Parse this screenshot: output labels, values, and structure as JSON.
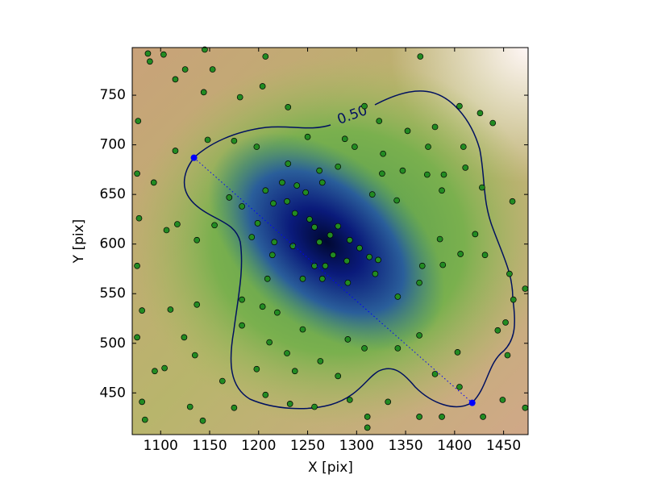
{
  "chart_data": {
    "type": "scatter",
    "x_label": "X [pix]",
    "y_label": "Y [pix]",
    "xlim": [
      1071,
      1475
    ],
    "ylim": [
      408,
      798
    ],
    "xticks": [
      1100,
      1150,
      1200,
      1250,
      1300,
      1350,
      1400,
      1450
    ],
    "yticks": [
      450,
      500,
      550,
      600,
      650,
      700,
      750
    ],
    "contour_label": "0.50",
    "series": [
      {
        "color": "#228b22",
        "x": [
          1087,
          1103,
          1145,
          1207,
          1365,
          1089,
          1125,
          1153,
          1115,
          1144,
          1181,
          1204,
          1230,
          1308,
          1323,
          1405,
          1426,
          1439,
          1380,
          1352,
          1077,
          1115,
          1148,
          1175,
          1198,
          1250,
          1288,
          1298,
          1327,
          1373,
          1409,
          1411,
          1372,
          1347,
          1326,
          1281,
          1262,
          1230,
          1239,
          1224,
          1207,
          1248,
          1265,
          1316,
          1341,
          1389,
          1387,
          1428,
          1459,
          1076,
          1093,
          1078,
          1106,
          1117,
          1137,
          1155,
          1170,
          1183,
          1199,
          1215,
          1229,
          1237,
          1252,
          1257,
          1262,
          1273,
          1281,
          1293,
          1303,
          1313,
          1322,
          1290,
          1276,
          1268,
          1257,
          1235,
          1216,
          1193,
          1214,
          1209,
          1245,
          1265,
          1291,
          1319,
          1342,
          1364,
          1367,
          1388,
          1406,
          1431,
          1385,
          1421,
          1456,
          1472,
          1460,
          1452,
          1076,
          1081,
          1110,
          1137,
          1183,
          1183,
          1204,
          1219,
          1245,
          1229,
          1211,
          1198,
          1237,
          1263,
          1281,
          1291,
          1308,
          1342,
          1364,
          1380,
          1405,
          1403,
          1444,
          1454,
          1076,
          1094,
          1104,
          1124,
          1135,
          1163,
          1175,
          1207,
          1232,
          1257,
          1293,
          1311,
          1332,
          1364,
          1387,
          1429,
          1449,
          1472,
          1081,
          1084,
          1130,
          1311,
          1143
        ],
        "y": [
          792,
          791,
          796,
          789,
          789,
          784,
          776,
          776,
          766,
          753,
          748,
          759,
          738,
          739,
          724,
          739,
          732,
          722,
          718,
          714,
          724,
          694,
          705,
          704,
          698,
          708,
          706,
          698,
          691,
          698,
          698,
          677,
          670,
          674,
          671,
          678,
          674,
          681,
          659,
          662,
          654,
          652,
          662,
          650,
          644,
          670,
          654,
          657,
          643,
          671,
          662,
          626,
          614,
          620,
          604,
          619,
          647,
          638,
          621,
          641,
          643,
          631,
          625,
          617,
          602,
          609,
          618,
          604,
          596,
          587,
          584,
          583,
          589,
          578,
          578,
          598,
          602,
          607,
          589,
          565,
          565,
          565,
          561,
          570,
          547,
          561,
          578,
          579,
          590,
          589,
          605,
          610,
          570,
          555,
          544,
          521,
          578,
          533,
          534,
          539,
          544,
          518,
          537,
          531,
          514,
          490,
          501,
          474,
          472,
          482,
          467,
          504,
          495,
          495,
          508,
          469,
          456,
          491,
          513,
          488,
          506,
          472,
          475,
          506,
          488,
          462,
          435,
          448,
          439,
          436,
          443,
          426,
          441,
          426,
          426,
          426,
          443,
          435,
          441,
          423,
          436,
          415,
          422
        ]
      }
    ],
    "segment": {
      "color": "#0000ff",
      "x": [
        1134,
        1418
      ],
      "y": [
        687,
        440
      ]
    }
  }
}
